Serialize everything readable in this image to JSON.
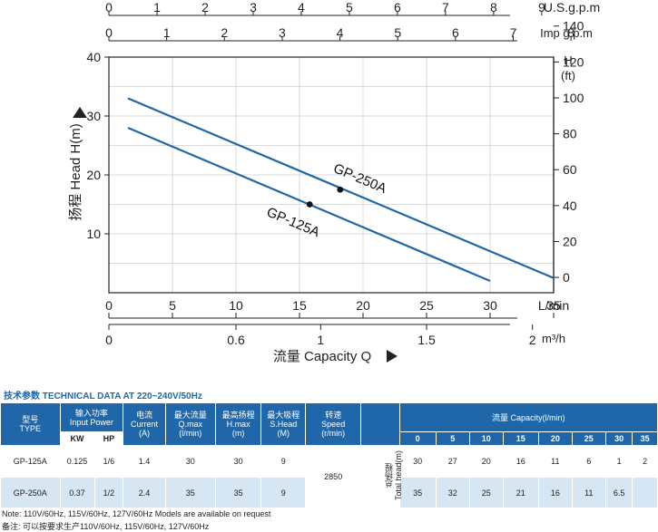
{
  "chart_data": {
    "type": "line",
    "xlabel": "流量 Capacity Q",
    "x_unit": "L/min",
    "ylabel": "扬程 Head H(m)",
    "y_right_unit": "H (ft)",
    "xlim": [
      0,
      35
    ],
    "ylim": [
      0,
      40
    ],
    "x_ticks": [
      "0",
      "5",
      "10",
      "15",
      "20",
      "25",
      "30",
      "35"
    ],
    "y_ticks": [
      "10",
      "20",
      "30",
      "40"
    ],
    "ft_ticks": [
      "0",
      "20",
      "40",
      "60",
      "80",
      "100",
      "120",
      "140"
    ],
    "usgpm_unit": "U.S.g.p.m",
    "usgpm_ticks": [
      "0",
      "1",
      "2",
      "3",
      "4",
      "5",
      "6",
      "7",
      "8",
      "9"
    ],
    "impgpm_unit": "Imp g.p.m",
    "impgpm_ticks": [
      "0",
      "1",
      "2",
      "3",
      "4",
      "5",
      "6",
      "7",
      "8"
    ],
    "m3h_unit": "m³/h",
    "m3h_ticks": [
      "0",
      "0.6",
      "1",
      "1.5",
      "2"
    ],
    "series": [
      {
        "name": "GP-250A",
        "color": "#1f67a8",
        "x": [
          1.5,
          35
        ],
        "y": [
          33,
          2.5
        ],
        "marker": [
          18.2,
          17.5
        ]
      },
      {
        "name": "GP-125A",
        "color": "#1f67a8",
        "x": [
          1.5,
          30
        ],
        "y": [
          28,
          2
        ],
        "marker": [
          15.8,
          15
        ]
      }
    ]
  },
  "section_title": "技术参数 TECHNICAL DATA AT 220~240V/50Hz",
  "table": {
    "type_cn": "型号",
    "type_en": "TYPE",
    "power_cn": "输入功率",
    "power_en": "Input Power",
    "kw": "KW",
    "hp": "HP",
    "current_cn": "电流",
    "current_en": "Current",
    "current_unit": "(A)",
    "qmax_cn": "最大流量",
    "qmax_en": "Q.max",
    "qmax_unit": "(l/min)",
    "hmax_cn": "最高扬程",
    "hmax_en": "H.max",
    "hmax_unit": "(m)",
    "shead_cn": "最大吸程",
    "shead_en": "S.Head",
    "shead_unit": "(M)",
    "speed_cn": "转速",
    "speed_en": "Speed",
    "speed_unit": "(r/min)",
    "capacity_label": "流量 Capacity(l/min)",
    "capacity_cols": [
      "0",
      "5",
      "10",
      "15",
      "20",
      "25",
      "30",
      "35"
    ],
    "total_head_cn": "总扬程",
    "total_head_en": "Total head(m)",
    "speed_value": "2850",
    "rows": [
      {
        "model": "GP-125A",
        "kw": "0.125",
        "hp": "1/6",
        "current": "1.4",
        "qmax": "30",
        "hmax": "30",
        "shead": "9",
        "heads": [
          "30",
          "27",
          "20",
          "16",
          "11",
          "6",
          "1",
          "2"
        ]
      },
      {
        "model": "GP-250A",
        "kw": "0.37",
        "hp": "1/2",
        "current": "2.4",
        "qmax": "35",
        "hmax": "35",
        "shead": "9",
        "heads": [
          "35",
          "32",
          "25",
          "21",
          "16",
          "11",
          "6.5",
          ""
        ]
      }
    ]
  },
  "note_en": "Note: 110V/60Hz, 115V/60Hz, 127V/60Hz Models are available on request",
  "note_cn": "备注: 可以按要求生产110V/60Hz, 115V/60Hz, 127V/60Hz"
}
